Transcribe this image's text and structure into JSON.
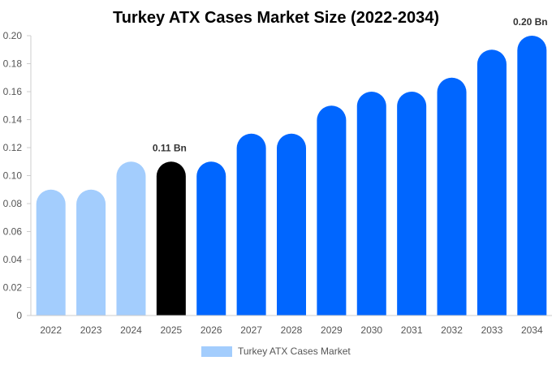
{
  "chart_data": {
    "type": "bar",
    "title": "Turkey ATX Cases Market Size (2022-2034)",
    "categories": [
      "2022",
      "2023",
      "2024",
      "2025",
      "2026",
      "2027",
      "2028",
      "2029",
      "2030",
      "2031",
      "2032",
      "2033",
      "2034"
    ],
    "values": [
      0.09,
      0.09,
      0.11,
      0.11,
      0.11,
      0.13,
      0.13,
      0.15,
      0.16,
      0.16,
      0.17,
      0.19,
      0.2
    ],
    "series_name": "Turkey ATX Cases Market",
    "ylim": [
      0,
      0.2
    ],
    "yticks": [
      "0",
      "0.02",
      "0.04",
      "0.06",
      "0.08",
      "0.10",
      "0.12",
      "0.14",
      "0.16",
      "0.18",
      "0.20"
    ],
    "ytick_values": [
      0,
      0.02,
      0.04,
      0.06,
      0.08,
      0.1,
      0.12,
      0.14,
      0.16,
      0.18,
      0.2
    ],
    "data_labels": [
      {
        "index": 3,
        "text": "0.11 Bn"
      },
      {
        "index": 12,
        "text": "0.20 Bn"
      }
    ],
    "bar_colors": [
      "#a3cdfd",
      "#a3cdfd",
      "#a3cdfd",
      "#000000",
      "#0066ff",
      "#0066ff",
      "#0066ff",
      "#0066ff",
      "#0066ff",
      "#0066ff",
      "#0066ff",
      "#0066ff",
      "#0066ff"
    ],
    "legend": {
      "position": "bottom-center",
      "color": "#a3cdfd"
    },
    "grid": false
  }
}
